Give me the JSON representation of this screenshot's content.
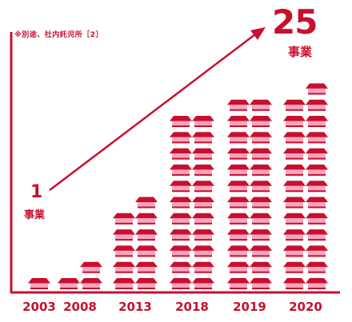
{
  "note": "※別途、社内託児所［2］",
  "start_callout": {
    "value": "1",
    "unit": "事業"
  },
  "end_callout": {
    "value": "25",
    "unit": "事業"
  },
  "colors": {
    "accent": "#c8102e",
    "house_body": "#f4a6be"
  },
  "chart_data": {
    "type": "bar",
    "title": "",
    "xlabel": "",
    "ylabel": "",
    "categories": [
      "2003",
      "2008",
      "2013",
      "2018",
      "2019",
      "2020"
    ],
    "values": [
      1,
      3,
      11,
      22,
      24,
      25
    ],
    "ylim": [
      0,
      25
    ],
    "grid": false,
    "legend": "none",
    "trend_arrow": {
      "from": "2003",
      "to": "2020"
    }
  }
}
